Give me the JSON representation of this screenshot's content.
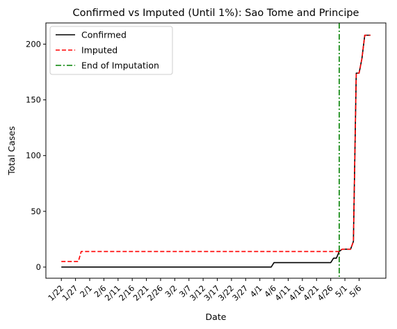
{
  "chart_data": {
    "type": "line",
    "title": "Confirmed vs Imputed (Until 1%): Sao Tome and Principe",
    "xlabel": "Date",
    "ylabel": "Total Cases",
    "x_dates": [
      "1/22",
      "1/23",
      "1/24",
      "1/25",
      "1/26",
      "1/27",
      "1/28",
      "1/29",
      "1/30",
      "1/31",
      "2/1",
      "2/2",
      "2/3",
      "2/4",
      "2/5",
      "2/6",
      "2/7",
      "2/8",
      "2/9",
      "2/10",
      "2/11",
      "2/12",
      "2/13",
      "2/14",
      "2/15",
      "2/16",
      "2/17",
      "2/18",
      "2/19",
      "2/20",
      "2/21",
      "2/22",
      "2/23",
      "2/24",
      "2/25",
      "2/26",
      "2/27",
      "2/28",
      "2/29",
      "3/1",
      "3/2",
      "3/3",
      "3/4",
      "3/5",
      "3/6",
      "3/7",
      "3/8",
      "3/9",
      "3/10",
      "3/11",
      "3/12",
      "3/13",
      "3/14",
      "3/15",
      "3/16",
      "3/17",
      "3/18",
      "3/19",
      "3/20",
      "3/21",
      "3/22",
      "3/23",
      "3/24",
      "3/25",
      "3/26",
      "3/27",
      "3/28",
      "3/29",
      "3/30",
      "3/31",
      "4/1",
      "4/2",
      "4/3",
      "4/4",
      "4/5",
      "4/6",
      "4/7",
      "4/8",
      "4/9",
      "4/10",
      "4/11",
      "4/12",
      "4/13",
      "4/14",
      "4/15",
      "4/16",
      "4/17",
      "4/18",
      "4/19",
      "4/20",
      "4/21",
      "4/22",
      "4/23",
      "4/24",
      "4/25",
      "4/26",
      "4/27",
      "4/28",
      "4/29",
      "4/30",
      "5/1",
      "5/2",
      "5/3",
      "5/4",
      "5/5",
      "5/6",
      "5/7",
      "5/8",
      "5/9",
      "5/10"
    ],
    "x_ticks": [
      "1/22",
      "1/27",
      "2/1",
      "2/6",
      "2/11",
      "2/16",
      "2/21",
      "2/26",
      "3/2",
      "3/7",
      "3/12",
      "3/17",
      "3/22",
      "3/27",
      "4/1",
      "4/6",
      "4/11",
      "4/16",
      "4/21",
      "4/26",
      "5/1",
      "5/6"
    ],
    "ylim": [
      -10,
      219
    ],
    "yticks": [
      0,
      50,
      100,
      150,
      200
    ],
    "series": [
      {
        "name": "Confirmed",
        "color": "#000000",
        "style": "solid",
        "values": [
          0,
          0,
          0,
          0,
          0,
          0,
          0,
          0,
          0,
          0,
          0,
          0,
          0,
          0,
          0,
          0,
          0,
          0,
          0,
          0,
          0,
          0,
          0,
          0,
          0,
          0,
          0,
          0,
          0,
          0,
          0,
          0,
          0,
          0,
          0,
          0,
          0,
          0,
          0,
          0,
          0,
          0,
          0,
          0,
          0,
          0,
          0,
          0,
          0,
          0,
          0,
          0,
          0,
          0,
          0,
          0,
          0,
          0,
          0,
          0,
          0,
          0,
          0,
          0,
          0,
          0,
          0,
          0,
          0,
          0,
          0,
          0,
          0,
          0,
          0,
          4,
          4,
          4,
          4,
          4,
          4,
          4,
          4,
          4,
          4,
          4,
          4,
          4,
          4,
          4,
          4,
          4,
          4,
          4,
          4,
          4,
          8,
          8,
          14,
          16,
          16,
          16,
          16,
          23,
          174,
          174,
          187,
          208,
          208,
          208
        ]
      },
      {
        "name": "Imputed",
        "color": "#ff0000",
        "style": "dashed",
        "values": [
          5,
          5,
          5,
          5,
          5,
          5,
          5,
          14,
          14,
          14,
          14,
          14,
          14,
          14,
          14,
          14,
          14,
          14,
          14,
          14,
          14,
          14,
          14,
          14,
          14,
          14,
          14,
          14,
          14,
          14,
          14,
          14,
          14,
          14,
          14,
          14,
          14,
          14,
          14,
          14,
          14,
          14,
          14,
          14,
          14,
          14,
          14,
          14,
          14,
          14,
          14,
          14,
          14,
          14,
          14,
          14,
          14,
          14,
          14,
          14,
          14,
          14,
          14,
          14,
          14,
          14,
          14,
          14,
          14,
          14,
          14,
          14,
          14,
          14,
          14,
          14,
          14,
          14,
          14,
          14,
          14,
          14,
          14,
          14,
          14,
          14,
          14,
          14,
          14,
          14,
          14,
          14,
          14,
          14,
          14,
          14,
          14,
          14,
          14,
          16,
          16,
          16,
          16,
          23,
          174,
          174,
          187,
          208,
          208,
          208
        ]
      }
    ],
    "vline": {
      "name": "End of Imputation",
      "x": "4/29",
      "color": "#008000",
      "style": "dashdot"
    },
    "legend_position": "top-left",
    "grid": false
  }
}
